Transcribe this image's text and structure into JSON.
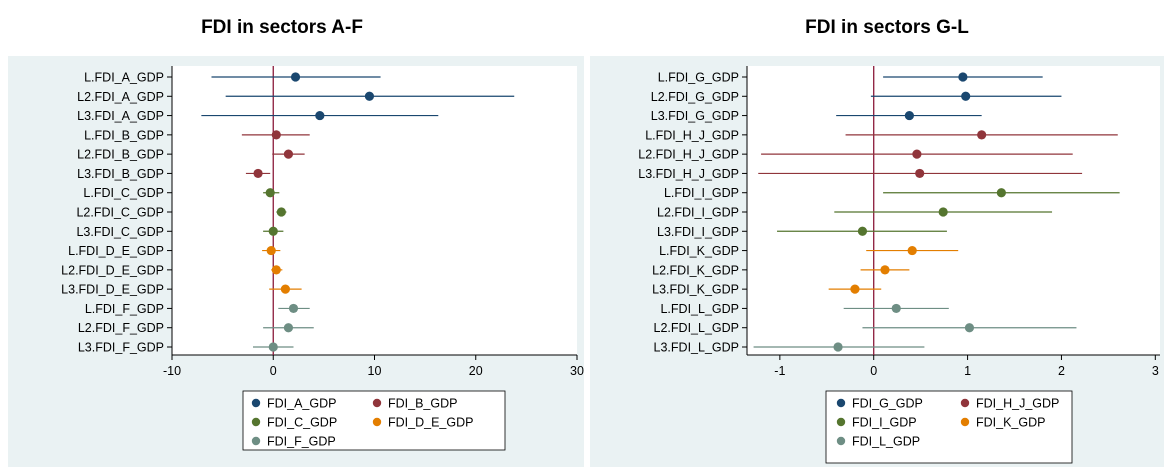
{
  "chart_data": [
    {
      "type": "scatter",
      "subtype": "coefficient-plot",
      "title": "FDI in sectors A-F",
      "xlabel": "",
      "ylabel": "",
      "xlim": [
        -10,
        30
      ],
      "xticks": [
        "-10",
        "0",
        "10",
        "20",
        "30"
      ],
      "reference_line": 0,
      "grid": false,
      "legend_position": "bottom",
      "series": [
        {
          "name": "FDI_A_GDP",
          "color": "#1a476f",
          "points": [
            {
              "label": "L.FDI_A_GDP",
              "estimate": 2.2,
              "ci": [
                -6.1,
                10.6
              ]
            },
            {
              "label": "L2.FDI_A_GDP",
              "estimate": 9.5,
              "ci": [
                -4.7,
                23.8
              ]
            },
            {
              "label": "L3.FDI_A_GDP",
              "estimate": 4.6,
              "ci": [
                -7.1,
                16.3
              ]
            }
          ]
        },
        {
          "name": "FDI_B_GDP",
          "color": "#90353b",
          "points": [
            {
              "label": "L.FDI_B_GDP",
              "estimate": 0.3,
              "ci": [
                -3.1,
                3.6
              ]
            },
            {
              "label": "L2.FDI_B_GDP",
              "estimate": 1.5,
              "ci": [
                -0.1,
                3.1
              ]
            },
            {
              "label": "L3.FDI_B_GDP",
              "estimate": -1.5,
              "ci": [
                -2.7,
                -0.3
              ]
            }
          ]
        },
        {
          "name": "FDI_C_GDP",
          "color": "#55752f",
          "points": [
            {
              "label": "L.FDI_C_GDP",
              "estimate": -0.3,
              "ci": [
                -1.0,
                0.6
              ]
            },
            {
              "label": "L2.FDI_C_GDP",
              "estimate": 0.8,
              "ci": [
                0.3,
                1.3
              ]
            },
            {
              "label": "L3.FDI_C_GDP",
              "estimate": 0.0,
              "ci": [
                -1.0,
                1.0
              ]
            }
          ]
        },
        {
          "name": "FDI_D_E_GDP",
          "color": "#e37e00",
          "points": [
            {
              "label": "L.FDI_D_E_GDP",
              "estimate": -0.2,
              "ci": [
                -1.1,
                0.7
              ]
            },
            {
              "label": "L2.FDI_D_E_GDP",
              "estimate": 0.3,
              "ci": [
                -0.2,
                0.9
              ]
            },
            {
              "label": "L3.FDI_D_E_GDP",
              "estimate": 1.2,
              "ci": [
                -0.4,
                2.8
              ]
            }
          ]
        },
        {
          "name": "FDI_F_GDP",
          "color": "#6e8e84",
          "points": [
            {
              "label": "L.FDI_F_GDP",
              "estimate": 2.0,
              "ci": [
                0.5,
                3.6
              ]
            },
            {
              "label": "L2.FDI_F_GDP",
              "estimate": 1.5,
              "ci": [
                -1.0,
                4.0
              ]
            },
            {
              "label": "L3.FDI_F_GDP",
              "estimate": 0.0,
              "ci": [
                -2.0,
                2.0
              ]
            }
          ]
        }
      ]
    },
    {
      "type": "scatter",
      "subtype": "coefficient-plot",
      "title": "FDI in sectors G-L",
      "xlabel": "",
      "ylabel": "",
      "xlim": [
        -1.35,
        3.05
      ],
      "xticks": [
        "-1",
        "0",
        "1",
        "2",
        "3"
      ],
      "reference_line": 0,
      "grid": false,
      "legend_position": "bottom",
      "series": [
        {
          "name": "FDI_G_GDP",
          "color": "#1a476f",
          "points": [
            {
              "label": "L.FDI_G_GDP",
              "estimate": 0.95,
              "ci": [
                0.1,
                1.8
              ]
            },
            {
              "label": "L2.FDI_G_GDP",
              "estimate": 0.98,
              "ci": [
                -0.03,
                2.0
              ]
            },
            {
              "label": "L3.FDI_G_GDP",
              "estimate": 0.38,
              "ci": [
                -0.4,
                1.15
              ]
            }
          ]
        },
        {
          "name": "FDI_H_J_GDP",
          "color": "#90353b",
          "points": [
            {
              "label": "L.FDI_H_J_GDP",
              "estimate": 1.15,
              "ci": [
                -0.3,
                2.6
              ]
            },
            {
              "label": "L2.FDI_H_J_GDP",
              "estimate": 0.46,
              "ci": [
                -1.2,
                2.12
              ]
            },
            {
              "label": "L3.FDI_H_J_GDP",
              "estimate": 0.49,
              "ci": [
                -1.23,
                2.22
              ]
            }
          ]
        },
        {
          "name": "FDI_I_GDP",
          "color": "#55752f",
          "points": [
            {
              "label": "L.FDI_I_GDP",
              "estimate": 1.36,
              "ci": [
                0.1,
                2.62
              ]
            },
            {
              "label": "L2.FDI_I_GDP",
              "estimate": 0.74,
              "ci": [
                -0.42,
                1.9
              ]
            },
            {
              "label": "L3.FDI_I_GDP",
              "estimate": -0.12,
              "ci": [
                -1.03,
                0.78
              ]
            }
          ]
        },
        {
          "name": "FDI_K_GDP",
          "color": "#e37e00",
          "points": [
            {
              "label": "L.FDI_K_GDP",
              "estimate": 0.41,
              "ci": [
                -0.08,
                0.9
              ]
            },
            {
              "label": "L2.FDI_K_GDP",
              "estimate": 0.12,
              "ci": [
                -0.14,
                0.38
              ]
            },
            {
              "label": "L3.FDI_K_GDP",
              "estimate": -0.2,
              "ci": [
                -0.48,
                0.08
              ]
            }
          ]
        },
        {
          "name": "FDI_L_GDP",
          "color": "#6e8e84",
          "points": [
            {
              "label": "L.FDI_L_GDP",
              "estimate": 0.24,
              "ci": [
                -0.32,
                0.8
              ]
            },
            {
              "label": "L2.FDI_L_GDP",
              "estimate": 1.02,
              "ci": [
                -0.12,
                2.16
              ]
            },
            {
              "label": "L3.FDI_L_GDP",
              "estimate": -0.38,
              "ci": [
                -1.28,
                0.54
              ]
            }
          ]
        }
      ]
    }
  ]
}
